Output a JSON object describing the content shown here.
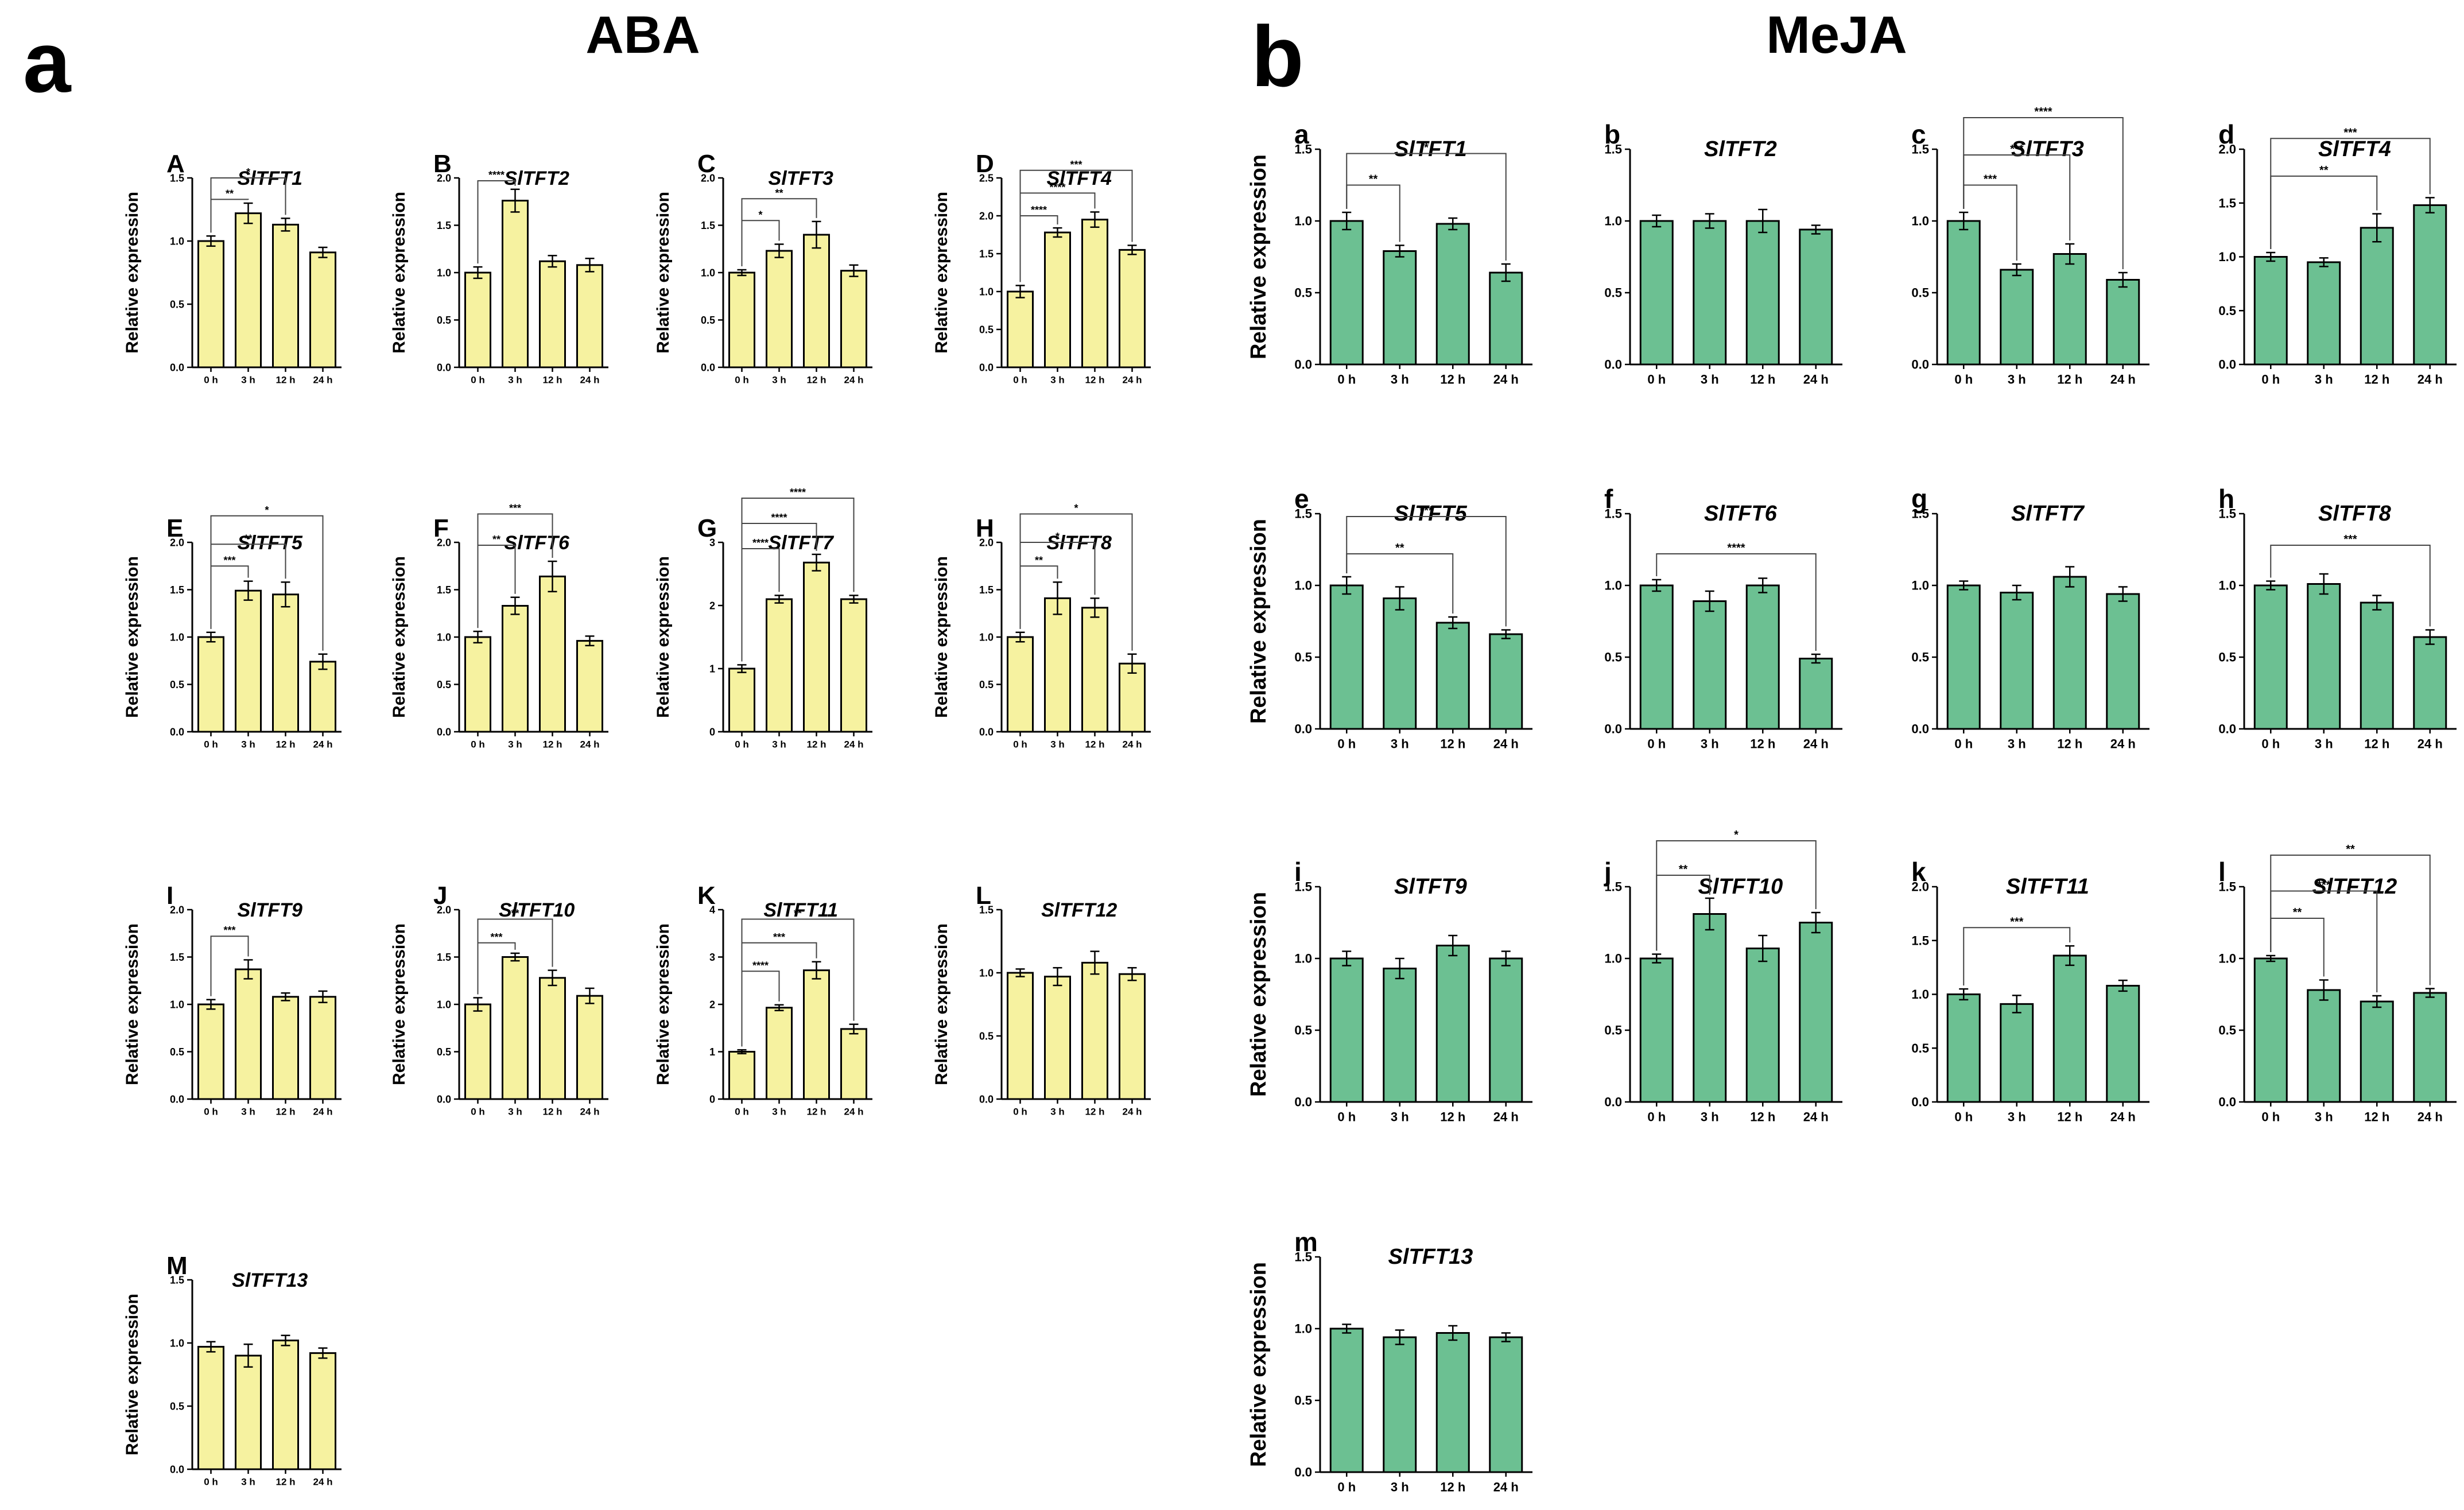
{
  "figure": {
    "colors": {
      "aba": "#f6f2a0",
      "meja": "#6cc092",
      "axis": "#000000"
    },
    "groups": [
      {
        "id": "aba",
        "letter": "a",
        "title": "ABA"
      },
      {
        "id": "meja",
        "letter": "b",
        "title": "MeJA"
      }
    ]
  },
  "chart_data": [
    {
      "group": "ABA",
      "type": "bar",
      "label": "A",
      "title": "SlTFT1",
      "ylabel": "Relative expression",
      "categories": [
        "0 h",
        "3 h",
        "12 h",
        "24 h"
      ],
      "values": [
        1.0,
        1.22,
        1.13,
        0.91
      ],
      "errors": [
        0.04,
        0.08,
        0.05,
        0.04
      ],
      "ylim": [
        0,
        1.5
      ],
      "yticks": [
        "0.0",
        "0.5",
        "1.0",
        "1.5"
      ],
      "significance": [
        {
          "from": 0,
          "to": 1,
          "label": "**",
          "y": 1.33
        },
        {
          "from": 0,
          "to": 2,
          "label": "*",
          "y": 1.5
        }
      ]
    },
    {
      "group": "ABA",
      "type": "bar",
      "label": "B",
      "title": "SlTFT2",
      "ylabel": "Relative expression",
      "categories": [
        "0 h",
        "3 h",
        "12 h",
        "24 h"
      ],
      "values": [
        1.0,
        1.76,
        1.12,
        1.08
      ],
      "errors": [
        0.06,
        0.12,
        0.06,
        0.07
      ],
      "ylim": [
        0,
        2.0
      ],
      "yticks": [
        "0.0",
        "0.5",
        "1.0",
        "1.5",
        "2.0"
      ],
      "significance": [
        {
          "from": 0,
          "to": 1,
          "label": "****",
          "y": 1.97
        }
      ]
    },
    {
      "group": "ABA",
      "type": "bar",
      "label": "C",
      "title": "SlTFT3",
      "ylabel": "Relative expression",
      "categories": [
        "0 h",
        "3 h",
        "12 h",
        "24 h"
      ],
      "values": [
        1.0,
        1.23,
        1.4,
        1.02
      ],
      "errors": [
        0.03,
        0.07,
        0.14,
        0.06
      ],
      "ylim": [
        0,
        2.0
      ],
      "yticks": [
        "0.0",
        "0.5",
        "1.0",
        "1.5",
        "2.0"
      ],
      "significance": [
        {
          "from": 0,
          "to": 1,
          "label": "*",
          "y": 1.55
        },
        {
          "from": 0,
          "to": 2,
          "label": "**",
          "y": 1.78
        }
      ]
    },
    {
      "group": "ABA",
      "type": "bar",
      "label": "D",
      "title": "SlTFT4",
      "ylabel": "Relative expression",
      "categories": [
        "0 h",
        "3 h",
        "12 h",
        "24 h"
      ],
      "values": [
        1.0,
        1.78,
        1.95,
        1.55
      ],
      "errors": [
        0.08,
        0.06,
        0.1,
        0.06
      ],
      "ylim": [
        0,
        2.5
      ],
      "yticks": [
        "0.0",
        "0.5",
        "1.0",
        "1.5",
        "2.0",
        "2.5"
      ],
      "significance": [
        {
          "from": 0,
          "to": 1,
          "label": "****",
          "y": 2.0
        },
        {
          "from": 0,
          "to": 2,
          "label": "****",
          "y": 2.3
        },
        {
          "from": 0,
          "to": 3,
          "label": "***",
          "y": 2.6
        }
      ]
    },
    {
      "group": "ABA",
      "type": "bar",
      "label": "E",
      "title": "SlTFT5",
      "ylabel": "Relative expression",
      "categories": [
        "0 h",
        "3 h",
        "12 h",
        "24 h"
      ],
      "values": [
        1.0,
        1.49,
        1.45,
        0.74
      ],
      "errors": [
        0.05,
        0.1,
        0.13,
        0.08
      ],
      "ylim": [
        0,
        2.0
      ],
      "yticks": [
        "0.0",
        "0.5",
        "1.0",
        "1.5",
        "2.0"
      ],
      "significance": [
        {
          "from": 0,
          "to": 1,
          "label": "***",
          "y": 1.75
        },
        {
          "from": 0,
          "to": 2,
          "label": "**",
          "y": 1.98
        },
        {
          "from": 0,
          "to": 3,
          "label": "*",
          "y": 2.28
        }
      ]
    },
    {
      "group": "ABA",
      "type": "bar",
      "label": "F",
      "title": "SlTFT6",
      "ylabel": "Relative expression",
      "categories": [
        "0 h",
        "3 h",
        "12 h",
        "24 h"
      ],
      "values": [
        1.0,
        1.33,
        1.64,
        0.96
      ],
      "errors": [
        0.06,
        0.09,
        0.16,
        0.05
      ],
      "ylim": [
        0,
        2.0
      ],
      "yticks": [
        "0.0",
        "0.5",
        "1.0",
        "1.5",
        "2.0"
      ],
      "significance": [
        {
          "from": 0,
          "to": 1,
          "label": "**",
          "y": 1.97
        },
        {
          "from": 0,
          "to": 2,
          "label": "***",
          "y": 2.3
        }
      ]
    },
    {
      "group": "ABA",
      "type": "bar",
      "label": "G",
      "title": "SlTFT7",
      "ylabel": "Relative expression",
      "categories": [
        "0 h",
        "3 h",
        "12 h",
        "24 h"
      ],
      "values": [
        1.0,
        2.1,
        2.68,
        2.1
      ],
      "errors": [
        0.06,
        0.06,
        0.13,
        0.06
      ],
      "ylim": [
        0,
        3
      ],
      "yticks": [
        "0",
        "1",
        "2",
        "3"
      ],
      "significance": [
        {
          "from": 0,
          "to": 1,
          "label": "****",
          "y": 2.9
        },
        {
          "from": 0,
          "to": 2,
          "label": "****",
          "y": 3.3
        },
        {
          "from": 0,
          "to": 3,
          "label": "****",
          "y": 3.7
        }
      ]
    },
    {
      "group": "ABA",
      "type": "bar",
      "label": "H",
      "title": "SlTFT8",
      "ylabel": "Relative expression",
      "categories": [
        "0 h",
        "3 h",
        "12 h",
        "24 h"
      ],
      "values": [
        1.0,
        1.41,
        1.31,
        0.72
      ],
      "errors": [
        0.05,
        0.17,
        0.1,
        0.1
      ],
      "ylim": [
        0,
        2.0
      ],
      "yticks": [
        "0.0",
        "0.5",
        "1.0",
        "1.5",
        "2.0"
      ],
      "significance": [
        {
          "from": 0,
          "to": 1,
          "label": "**",
          "y": 1.75
        },
        {
          "from": 0,
          "to": 2,
          "label": "*",
          "y": 2.0
        },
        {
          "from": 0,
          "to": 3,
          "label": "*",
          "y": 2.3
        }
      ]
    },
    {
      "group": "ABA",
      "type": "bar",
      "label": "I",
      "title": "SlTFT9",
      "ylabel": "Relative expression",
      "categories": [
        "0 h",
        "3 h",
        "12 h",
        "24 h"
      ],
      "values": [
        1.0,
        1.37,
        1.08,
        1.08
      ],
      "errors": [
        0.05,
        0.1,
        0.04,
        0.06
      ],
      "ylim": [
        0,
        2.0
      ],
      "yticks": [
        "0.0",
        "0.5",
        "1.0",
        "1.5",
        "2.0"
      ],
      "significance": [
        {
          "from": 0,
          "to": 1,
          "label": "***",
          "y": 1.72
        }
      ]
    },
    {
      "group": "ABA",
      "type": "bar",
      "label": "J",
      "title": "SlTFT10",
      "ylabel": "Relative expression",
      "categories": [
        "0 h",
        "3 h",
        "12 h",
        "24 h"
      ],
      "values": [
        1.0,
        1.5,
        1.28,
        1.09
      ],
      "errors": [
        0.07,
        0.04,
        0.08,
        0.08
      ],
      "ylim": [
        0,
        2.0
      ],
      "yticks": [
        "0.0",
        "0.5",
        "1.0",
        "1.5",
        "2.0"
      ],
      "significance": [
        {
          "from": 0,
          "to": 1,
          "label": "***",
          "y": 1.65
        },
        {
          "from": 0,
          "to": 2,
          "label": "**",
          "y": 1.9
        }
      ]
    },
    {
      "group": "ABA",
      "type": "bar",
      "label": "K",
      "title": "SlTFT11",
      "ylabel": "Relative expression",
      "categories": [
        "0 h",
        "3 h",
        "12 h",
        "24 h"
      ],
      "values": [
        1.0,
        1.93,
        2.72,
        1.48
      ],
      "errors": [
        0.04,
        0.06,
        0.18,
        0.1
      ],
      "ylim": [
        0,
        4
      ],
      "yticks": [
        "0",
        "1",
        "2",
        "3",
        "4"
      ],
      "significance": [
        {
          "from": 0,
          "to": 1,
          "label": "****",
          "y": 2.7
        },
        {
          "from": 0,
          "to": 2,
          "label": "***",
          "y": 3.3
        },
        {
          "from": 0,
          "to": 3,
          "label": "**",
          "y": 3.8
        }
      ]
    },
    {
      "group": "ABA",
      "type": "bar",
      "label": "L",
      "title": "SlTFT12",
      "ylabel": "Relative expression",
      "categories": [
        "0 h",
        "3 h",
        "12 h",
        "24 h"
      ],
      "values": [
        1.0,
        0.97,
        1.08,
        0.99
      ],
      "errors": [
        0.03,
        0.07,
        0.09,
        0.05
      ],
      "ylim": [
        0,
        1.5
      ],
      "yticks": [
        "0.0",
        "0.5",
        "1.0",
        "1.5"
      ],
      "significance": []
    },
    {
      "group": "ABA",
      "type": "bar",
      "label": "M",
      "title": "SlTFT13",
      "ylabel": "Relative expression",
      "categories": [
        "0 h",
        "3 h",
        "12 h",
        "24 h"
      ],
      "values": [
        0.97,
        0.9,
        1.02,
        0.92
      ],
      "errors": [
        0.04,
        0.09,
        0.04,
        0.04
      ],
      "ylim": [
        0,
        1.5
      ],
      "yticks": [
        "0.0",
        "0.5",
        "1.0",
        "1.5"
      ],
      "significance": []
    },
    {
      "group": "MeJA",
      "type": "bar",
      "label": "a",
      "title": "SlTFT1",
      "ylabel": "Relative expression",
      "categories": [
        "0 h",
        "3 h",
        "12 h",
        "24 h"
      ],
      "values": [
        1.0,
        0.79,
        0.98,
        0.64
      ],
      "errors": [
        0.06,
        0.04,
        0.04,
        0.06
      ],
      "ylim": [
        0,
        1.5
      ],
      "yticks": [
        "0.0",
        "0.5",
        "1.0",
        "1.5"
      ],
      "significance": [
        {
          "from": 0,
          "to": 1,
          "label": "**",
          "y": 1.25
        },
        {
          "from": 0,
          "to": 3,
          "label": "*",
          "y": 1.47
        }
      ]
    },
    {
      "group": "MeJA",
      "type": "bar",
      "label": "b",
      "title": "SlTFT2",
      "ylabel": "",
      "categories": [
        "0 h",
        "3 h",
        "12 h",
        "24 h"
      ],
      "values": [
        1.0,
        1.0,
        1.0,
        0.94
      ],
      "errors": [
        0.04,
        0.05,
        0.08,
        0.03
      ],
      "ylim": [
        0,
        1.5
      ],
      "yticks": [
        "0.0",
        "0.5",
        "1.0",
        "1.5"
      ],
      "significance": []
    },
    {
      "group": "MeJA",
      "type": "bar",
      "label": "c",
      "title": "SlTFT3",
      "ylabel": "",
      "categories": [
        "0 h",
        "3 h",
        "12 h",
        "24 h"
      ],
      "values": [
        1.0,
        0.66,
        0.77,
        0.59
      ],
      "errors": [
        0.06,
        0.04,
        0.07,
        0.05
      ],
      "ylim": [
        0,
        1.5
      ],
      "yticks": [
        "0.0",
        "0.5",
        "1.0",
        "1.5"
      ],
      "significance": [
        {
          "from": 0,
          "to": 1,
          "label": "***",
          "y": 1.25
        },
        {
          "from": 0,
          "to": 2,
          "label": "***",
          "y": 1.46
        },
        {
          "from": 0,
          "to": 3,
          "label": "****",
          "y": 1.72
        }
      ]
    },
    {
      "group": "MeJA",
      "type": "bar",
      "label": "d",
      "title": "SlTFT4",
      "ylabel": "",
      "categories": [
        "0 h",
        "3 h",
        "12 h",
        "24 h"
      ],
      "values": [
        1.0,
        0.95,
        1.27,
        1.48
      ],
      "errors": [
        0.04,
        0.04,
        0.13,
        0.07
      ],
      "ylim": [
        0,
        2.0
      ],
      "yticks": [
        "0.0",
        "0.5",
        "1.0",
        "1.5",
        "2.0"
      ],
      "significance": [
        {
          "from": 0,
          "to": 2,
          "label": "**",
          "y": 1.75
        },
        {
          "from": 0,
          "to": 3,
          "label": "***",
          "y": 2.1
        }
      ]
    },
    {
      "group": "MeJA",
      "type": "bar",
      "label": "e",
      "title": "SlTFT5",
      "ylabel": "Relative expression",
      "categories": [
        "0 h",
        "3 h",
        "12 h",
        "24 h"
      ],
      "values": [
        1.0,
        0.91,
        0.74,
        0.66
      ],
      "errors": [
        0.06,
        0.08,
        0.04,
        0.03
      ],
      "ylim": [
        0,
        1.5
      ],
      "yticks": [
        "0.0",
        "0.5",
        "1.0",
        "1.5"
      ],
      "significance": [
        {
          "from": 0,
          "to": 2,
          "label": "**",
          "y": 1.22
        },
        {
          "from": 0,
          "to": 3,
          "label": "***",
          "y": 1.48
        }
      ]
    },
    {
      "group": "MeJA",
      "type": "bar",
      "label": "f",
      "title": "SlTFT6",
      "ylabel": "",
      "categories": [
        "0 h",
        "3 h",
        "12 h",
        "24 h"
      ],
      "values": [
        1.0,
        0.89,
        1.0,
        0.49
      ],
      "errors": [
        0.04,
        0.07,
        0.05,
        0.03
      ],
      "ylim": [
        0,
        1.5
      ],
      "yticks": [
        "0.0",
        "0.5",
        "1.0",
        "1.5"
      ],
      "significance": [
        {
          "from": 0,
          "to": 3,
          "label": "****",
          "y": 1.22
        }
      ]
    },
    {
      "group": "MeJA",
      "type": "bar",
      "label": "g",
      "title": "SlTFT7",
      "ylabel": "",
      "categories": [
        "0 h",
        "3 h",
        "12 h",
        "24 h"
      ],
      "values": [
        1.0,
        0.95,
        1.06,
        0.94
      ],
      "errors": [
        0.03,
        0.05,
        0.07,
        0.05
      ],
      "ylim": [
        0,
        1.5
      ],
      "yticks": [
        "0.0",
        "0.5",
        "1.0",
        "1.5"
      ],
      "significance": []
    },
    {
      "group": "MeJA",
      "type": "bar",
      "label": "h",
      "title": "SlTFT8",
      "ylabel": "",
      "categories": [
        "0 h",
        "3 h",
        "12 h",
        "24 h"
      ],
      "values": [
        1.0,
        1.01,
        0.88,
        0.64
      ],
      "errors": [
        0.03,
        0.07,
        0.05,
        0.05
      ],
      "ylim": [
        0,
        1.5
      ],
      "yticks": [
        "0.0",
        "0.5",
        "1.0",
        "1.5"
      ],
      "significance": [
        {
          "from": 0,
          "to": 3,
          "label": "***",
          "y": 1.28
        }
      ]
    },
    {
      "group": "MeJA",
      "type": "bar",
      "label": "i",
      "title": "SlTFT9",
      "ylabel": "Relative expression",
      "categories": [
        "0 h",
        "3 h",
        "12 h",
        "24 h"
      ],
      "values": [
        1.0,
        0.93,
        1.09,
        1.0
      ],
      "errors": [
        0.05,
        0.07,
        0.07,
        0.05
      ],
      "ylim": [
        0,
        1.5
      ],
      "yticks": [
        "0.0",
        "0.5",
        "1.0",
        "1.5"
      ],
      "significance": []
    },
    {
      "group": "MeJA",
      "type": "bar",
      "label": "j",
      "title": "SlTFT10",
      "ylabel": "",
      "categories": [
        "0 h",
        "3 h",
        "12 h",
        "24 h"
      ],
      "values": [
        1.0,
        1.31,
        1.07,
        1.25
      ],
      "errors": [
        0.03,
        0.11,
        0.09,
        0.07
      ],
      "ylim": [
        0,
        1.5
      ],
      "yticks": [
        "0.0",
        "0.5",
        "1.0",
        "1.5"
      ],
      "significance": [
        {
          "from": 0,
          "to": 1,
          "label": "**",
          "y": 1.58
        },
        {
          "from": 0,
          "to": 3,
          "label": "*",
          "y": 1.82
        }
      ]
    },
    {
      "group": "MeJA",
      "type": "bar",
      "label": "k",
      "title": "SlTFT11",
      "ylabel": "",
      "categories": [
        "0 h",
        "3 h",
        "12 h",
        "24 h"
      ],
      "values": [
        1.0,
        0.91,
        1.36,
        1.08
      ],
      "errors": [
        0.05,
        0.08,
        0.09,
        0.05
      ],
      "ylim": [
        0,
        2.0
      ],
      "yticks": [
        "0.0",
        "0.5",
        "1.0",
        "1.5",
        "2.0"
      ],
      "significance": [
        {
          "from": 0,
          "to": 2,
          "label": "***",
          "y": 1.62
        }
      ]
    },
    {
      "group": "MeJA",
      "type": "bar",
      "label": "l",
      "title": "SlTFT12",
      "ylabel": "",
      "categories": [
        "0 h",
        "3 h",
        "12 h",
        "24 h"
      ],
      "values": [
        1.0,
        0.78,
        0.7,
        0.76
      ],
      "errors": [
        0.02,
        0.07,
        0.04,
        0.03
      ],
      "ylim": [
        0,
        1.5
      ],
      "yticks": [
        "0.0",
        "0.5",
        "1.0",
        "1.5"
      ],
      "significance": [
        {
          "from": 0,
          "to": 1,
          "label": "**",
          "y": 1.28
        },
        {
          "from": 0,
          "to": 2,
          "label": "***",
          "y": 1.47
        },
        {
          "from": 0,
          "to": 3,
          "label": "**",
          "y": 1.72
        }
      ]
    },
    {
      "group": "MeJA",
      "type": "bar",
      "label": "m",
      "title": "SlTFT13",
      "ylabel": "Relative expression",
      "categories": [
        "0 h",
        "3 h",
        "12 h",
        "24 h"
      ],
      "values": [
        1.0,
        0.94,
        0.97,
        0.94
      ],
      "errors": [
        0.03,
        0.05,
        0.05,
        0.03
      ],
      "ylim": [
        0,
        1.5
      ],
      "yticks": [
        "0.0",
        "0.5",
        "1.0",
        "1.5"
      ],
      "significance": []
    }
  ]
}
